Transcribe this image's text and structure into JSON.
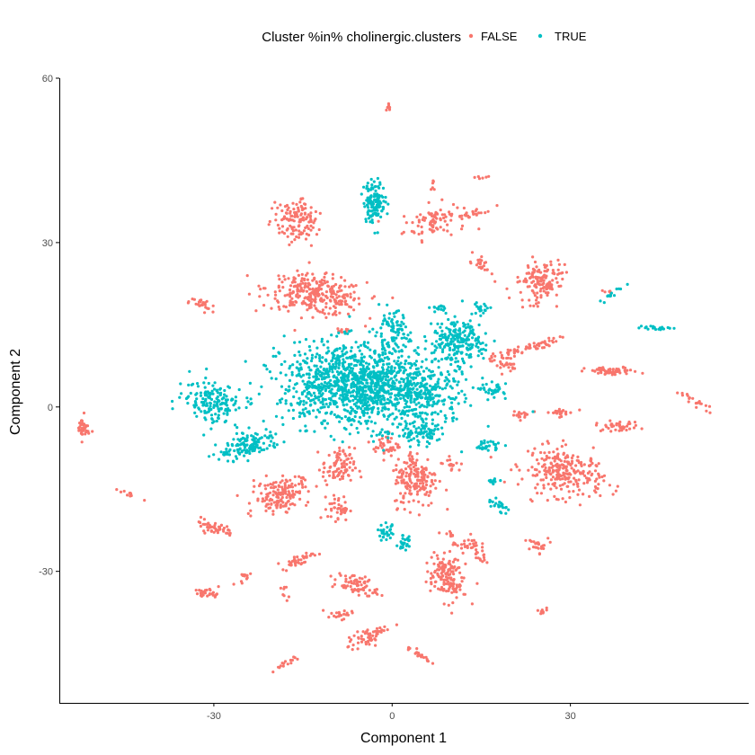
{
  "chart_data": {
    "type": "scatter",
    "title": "",
    "xlabel": "Component 1",
    "ylabel": "Component 2",
    "xlim": [
      -56,
      60
    ],
    "ylim": [
      -54,
      60
    ],
    "x_ticks": [
      -30,
      0,
      30
    ],
    "y_ticks": [
      -30,
      0,
      30,
      60
    ],
    "grid": false,
    "legend": {
      "title": "Cluster %in% cholinergic.clusters",
      "position": "top",
      "entries": [
        "FALSE",
        "TRUE"
      ]
    },
    "colors": {
      "FALSE": "#F8766D",
      "TRUE": "#00BFC4"
    },
    "point_radius_note": "small dots",
    "series": [
      {
        "name": "FALSE",
        "clusters": [
          {
            "cx": -0.5,
            "cy": 54.5,
            "sx": 0.3,
            "sy": 0.8,
            "n": 8
          },
          {
            "cx": -16,
            "cy": 34,
            "sx": 2.5,
            "sy": 2.6,
            "rot": 0.6,
            "n": 130
          },
          {
            "cx": 7,
            "cy": 34,
            "sx": 3.5,
            "sy": 2.0,
            "rot": 0.2,
            "n": 90
          },
          {
            "cx": 14,
            "cy": 35.5,
            "sx": 2.5,
            "sy": 0.4,
            "rot": 0.2,
            "n": 20
          },
          {
            "cx": 15,
            "cy": 42,
            "sx": 1.0,
            "sy": 0.3,
            "n": 6
          },
          {
            "cx": 7,
            "cy": 40,
            "sx": 0.3,
            "sy": 1.0,
            "n": 6
          },
          {
            "cx": 15,
            "cy": 26,
            "sx": 0.8,
            "sy": 1.5,
            "rot": 0.8,
            "n": 25
          },
          {
            "cx": -13,
            "cy": 20.5,
            "sx": 5.5,
            "sy": 2.3,
            "rot": -0.15,
            "n": 300
          },
          {
            "cx": -32,
            "cy": 18.5,
            "sx": 1.5,
            "sy": 0.8,
            "rot": -0.3,
            "n": 25
          },
          {
            "cx": 25,
            "cy": 23,
            "sx": 2.8,
            "sy": 2.5,
            "rot": 0.6,
            "n": 150
          },
          {
            "cx": 22,
            "cy": 10.5,
            "sx": 4.0,
            "sy": 0.5,
            "rot": 0.3,
            "n": 60
          },
          {
            "cx": 19,
            "cy": 8,
            "sx": 1.5,
            "sy": 1.2,
            "n": 30
          },
          {
            "cx": 37,
            "cy": 6.5,
            "sx": 3.0,
            "sy": 0.5,
            "n": 60
          },
          {
            "cx": 36,
            "cy": 21,
            "sx": 0.8,
            "sy": 0.3,
            "n": 6
          },
          {
            "cx": 51,
            "cy": 1,
            "sx": 2.0,
            "sy": 0.4,
            "rot": -0.6,
            "n": 20
          },
          {
            "cx": 38,
            "cy": -3.5,
            "sx": 2.5,
            "sy": 0.6,
            "n": 40
          },
          {
            "cx": 28,
            "cy": -1,
            "sx": 1.8,
            "sy": 0.5,
            "n": 25
          },
          {
            "cx": 22,
            "cy": -1.5,
            "sx": 1.2,
            "sy": 0.4,
            "n": 15
          },
          {
            "cx": 29,
            "cy": -12,
            "sx": 4.5,
            "sy": 2.8,
            "rot": -0.2,
            "n": 260
          },
          {
            "cx": 24.5,
            "cy": -25.5,
            "sx": 1.2,
            "sy": 1.0,
            "rot": -0.5,
            "n": 25
          },
          {
            "cx": 25,
            "cy": -37.5,
            "sx": 0.8,
            "sy": 0.6,
            "n": 10
          },
          {
            "cx": -52,
            "cy": -4,
            "sx": 0.7,
            "sy": 1.5,
            "n": 35
          },
          {
            "cx": -44,
            "cy": -16,
            "sx": 1.5,
            "sy": 0.3,
            "rot": -0.4,
            "n": 12
          },
          {
            "cx": -19,
            "cy": -16,
            "sx": 3.0,
            "sy": 2.0,
            "rot": 0.3,
            "n": 160
          },
          {
            "cx": -9,
            "cy": -11,
            "sx": 1.8,
            "sy": 2.3,
            "n": 90
          },
          {
            "cx": -9,
            "cy": -18.5,
            "sx": 1.2,
            "sy": 1.5,
            "n": 40
          },
          {
            "cx": -1,
            "cy": -7,
            "sx": 1.5,
            "sy": 1.5,
            "n": 40
          },
          {
            "cx": 4,
            "cy": -13,
            "sx": 2.5,
            "sy": 3.5,
            "n": 180
          },
          {
            "cx": 10,
            "cy": -10.5,
            "sx": 1.0,
            "sy": 0.8,
            "n": 15
          },
          {
            "cx": -30,
            "cy": -22,
            "sx": 2.5,
            "sy": 0.7,
            "rot": -0.3,
            "n": 50
          },
          {
            "cx": -16,
            "cy": -28,
            "sx": 2.0,
            "sy": 0.7,
            "rot": 0.3,
            "n": 40
          },
          {
            "cx": -25,
            "cy": -31,
            "sx": 1.0,
            "sy": 0.4,
            "rot": 0.5,
            "n": 12
          },
          {
            "cx": -18,
            "cy": -34,
            "sx": 0.4,
            "sy": 0.8,
            "n": 8
          },
          {
            "cx": -31,
            "cy": -34,
            "sx": 1.5,
            "sy": 0.6,
            "n": 30
          },
          {
            "cx": -6,
            "cy": -32.5,
            "sx": 2.5,
            "sy": 1.2,
            "rot": -0.3,
            "n": 70
          },
          {
            "cx": -9,
            "cy": -38,
            "sx": 1.5,
            "sy": 0.6,
            "rot": 0.3,
            "n": 20
          },
          {
            "cx": -4,
            "cy": -42,
            "sx": 2.5,
            "sy": 1.0,
            "rot": 0.5,
            "n": 60
          },
          {
            "cx": 9,
            "cy": -31,
            "sx": 2.0,
            "sy": 3.0,
            "rot": 0.2,
            "n": 150
          },
          {
            "cx": 12.5,
            "cy": -25,
            "sx": 1.5,
            "sy": 1.0,
            "n": 30
          },
          {
            "cx": 15,
            "cy": -27.5,
            "sx": 1.0,
            "sy": 0.6,
            "rot": -0.5,
            "n": 15
          },
          {
            "cx": 4.5,
            "cy": -45,
            "sx": 1.8,
            "sy": 0.5,
            "rot": -0.6,
            "n": 25
          },
          {
            "cx": -18,
            "cy": -47,
            "sx": 1.8,
            "sy": 0.3,
            "rot": 0.6,
            "n": 15
          },
          {
            "cx": 10,
            "cy": -23,
            "sx": 0.5,
            "sy": 0.4,
            "n": 6
          },
          {
            "cx": -8,
            "cy": 14,
            "sx": 0.8,
            "sy": 0.5,
            "n": 8
          }
        ]
      },
      {
        "name": "TRUE",
        "clusters": [
          {
            "cx": -3,
            "cy": 37.5,
            "sx": 1.2,
            "sy": 2.5,
            "n": 130
          },
          {
            "cx": -5,
            "cy": 4,
            "sx": 9.0,
            "sy": 5.0,
            "rot": -0.05,
            "n": 1300
          },
          {
            "cx": 11,
            "cy": 12,
            "sx": 3.0,
            "sy": 3.0,
            "rot": -0.5,
            "n": 220
          },
          {
            "cx": 0,
            "cy": 14,
            "sx": 2.0,
            "sy": 2.2,
            "n": 80
          },
          {
            "cx": 6,
            "cy": 2,
            "sx": 3.0,
            "sy": 3.0,
            "n": 120
          },
          {
            "cx": -30,
            "cy": 1,
            "sx": 3.5,
            "sy": 2.5,
            "rot": -0.3,
            "n": 160
          },
          {
            "cx": -24,
            "cy": -7,
            "sx": 3.5,
            "sy": 1.5,
            "rot": 0.3,
            "n": 140
          },
          {
            "cx": 17,
            "cy": 3,
            "sx": 1.5,
            "sy": 0.8,
            "n": 35
          },
          {
            "cx": 16,
            "cy": -7,
            "sx": 1.5,
            "sy": 0.7,
            "n": 30
          },
          {
            "cx": 18,
            "cy": -18,
            "sx": 1.5,
            "sy": 0.6,
            "rot": -0.6,
            "n": 25
          },
          {
            "cx": 17,
            "cy": -13.5,
            "sx": 0.8,
            "sy": 0.3,
            "n": 10
          },
          {
            "cx": -1,
            "cy": -23,
            "sx": 1.0,
            "sy": 1.0,
            "n": 30
          },
          {
            "cx": 2,
            "cy": -25,
            "sx": 0.7,
            "sy": 1.0,
            "n": 25
          },
          {
            "cx": 37,
            "cy": 20.5,
            "sx": 1.2,
            "sy": 0.3,
            "rot": 0.6,
            "n": 15
          },
          {
            "cx": 44,
            "cy": 14.5,
            "sx": 2.0,
            "sy": 0.25,
            "n": 20
          },
          {
            "cx": 5,
            "cy": -5,
            "sx": 3.0,
            "sy": 1.5,
            "n": 80
          },
          {
            "cx": 8,
            "cy": 18,
            "sx": 1.0,
            "sy": 0.6,
            "n": 15
          },
          {
            "cx": 15,
            "cy": 18,
            "sx": 1.0,
            "sy": 0.8,
            "n": 20
          }
        ]
      }
    ]
  }
}
